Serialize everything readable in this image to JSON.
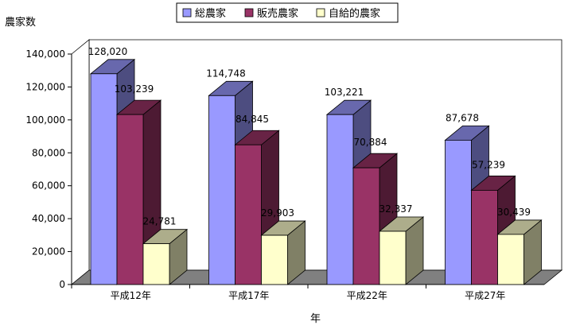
{
  "chart_data": {
    "type": "bar",
    "title": "",
    "xlabel": "年",
    "ylabel": "農家数",
    "categories": [
      "平成12年",
      "平成17年",
      "平成22年",
      "平成27年"
    ],
    "ylim": [
      0,
      140000
    ],
    "yticks": [
      0,
      20000,
      40000,
      60000,
      80000,
      100000,
      120000,
      140000
    ],
    "ytick_labels": [
      "0",
      "20,000",
      "40,000",
      "60,000",
      "80,000",
      "100,000",
      "120,000",
      "140,000"
    ],
    "legend_position": "top-center",
    "grid": false,
    "three_d": true,
    "series": [
      {
        "name": "総農家",
        "color": "#9999FF",
        "values": [
          128020,
          114748,
          103221,
          87678
        ],
        "value_labels": [
          "128,020",
          "114,748",
          "103,221",
          "87,678"
        ]
      },
      {
        "name": "販売農家",
        "color": "#993366",
        "values": [
          103239,
          84845,
          70884,
          57239
        ],
        "value_labels": [
          "103,239",
          "84,845",
          "70,884",
          "57,239"
        ]
      },
      {
        "name": "自給的農家",
        "color": "#FFFFCC",
        "values": [
          24781,
          29903,
          32337,
          30439
        ],
        "value_labels": [
          "24,781",
          "29,903",
          "32,337",
          "30,439"
        ]
      }
    ]
  }
}
